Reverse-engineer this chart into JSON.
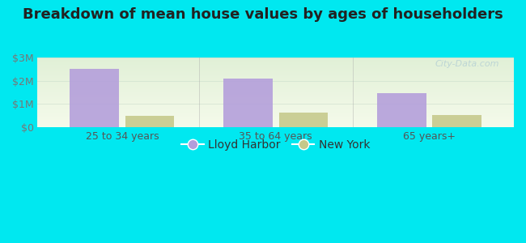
{
  "title": "Breakdown of mean house values by ages of householders",
  "categories": [
    "25 to 34 years",
    "35 to 64 years",
    "65 years+"
  ],
  "lloyd_harbor": [
    2500000,
    2100000,
    1480000
  ],
  "new_york": [
    480000,
    620000,
    520000
  ],
  "lloyd_harbor_color": "#b39ddb",
  "new_york_color": "#c5c98a",
  "background_color": "#00e8f0",
  "yticks": [
    0,
    1000000,
    2000000,
    3000000
  ],
  "ytick_labels": [
    "$0",
    "$1M",
    "$2M",
    "$3M"
  ],
  "ylim": [
    0,
    3000000
  ],
  "bar_width": 0.32,
  "title_fontsize": 13,
  "tick_fontsize": 9,
  "legend_fontsize": 10,
  "watermark": "City-Data.com"
}
